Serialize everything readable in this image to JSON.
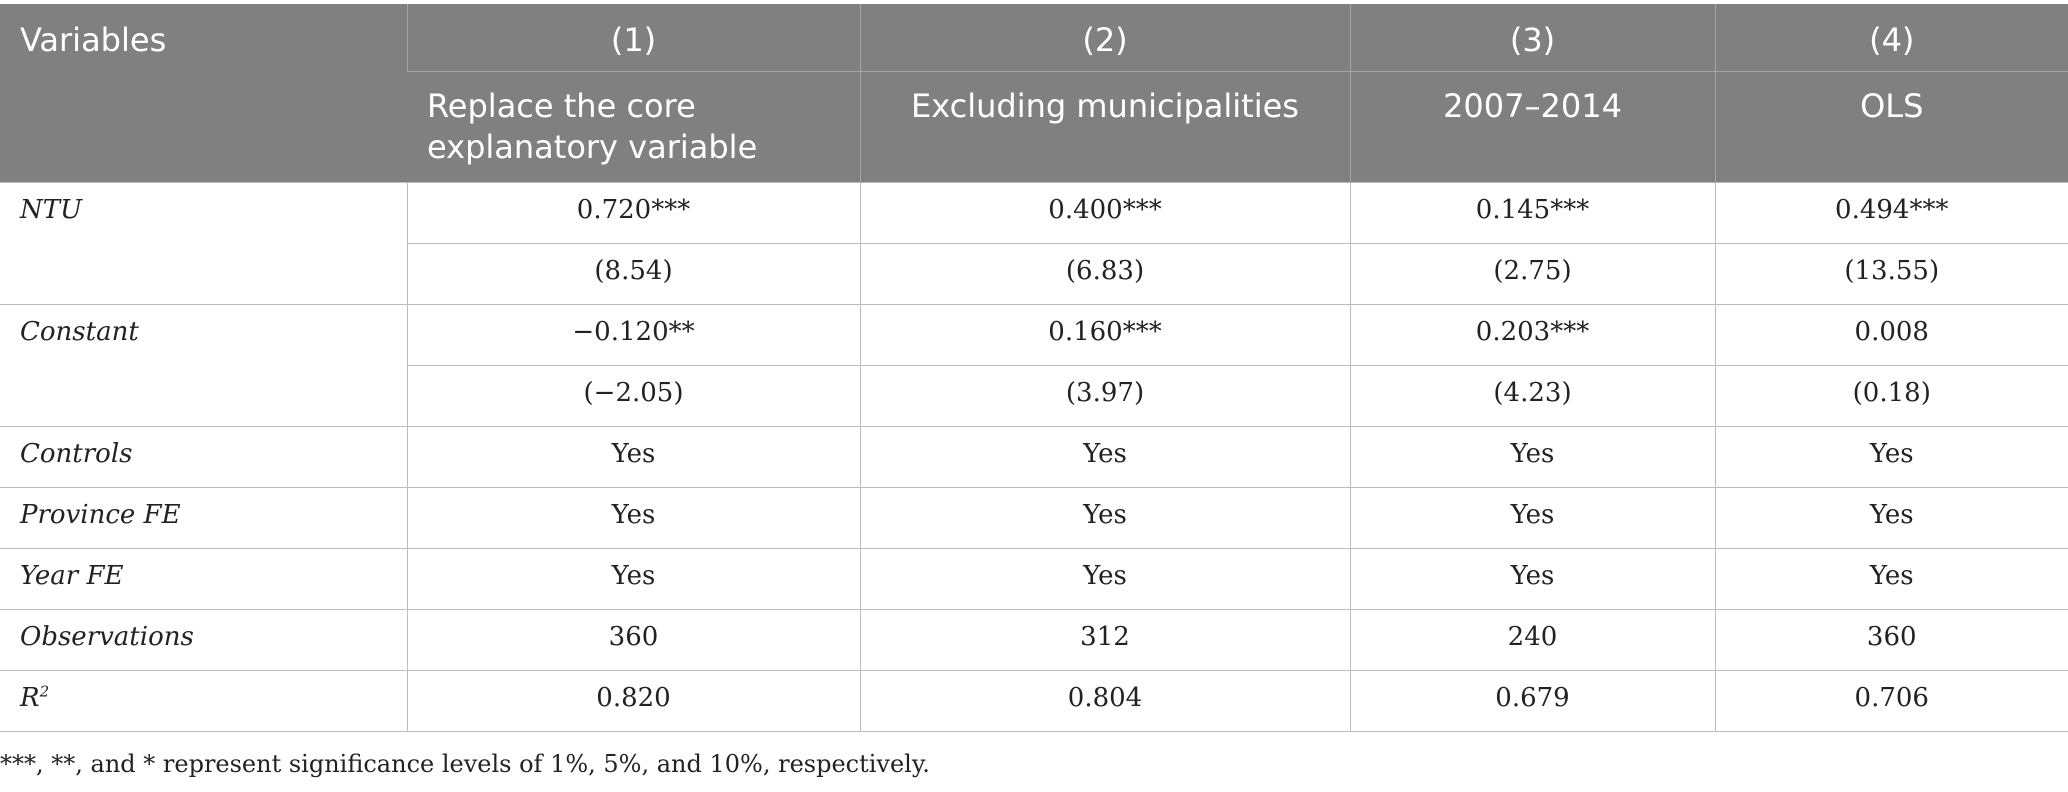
{
  "header": {
    "variables_label": "Variables",
    "columns": [
      {
        "number": "(1)",
        "title": "Replace the core explanatory variable"
      },
      {
        "number": "(2)",
        "title": "Excluding municipalities"
      },
      {
        "number": "(3)",
        "title": "2007–2014"
      },
      {
        "number": "(4)",
        "title": "OLS"
      }
    ]
  },
  "rows": {
    "ntu": {
      "label": "NTU",
      "coef": [
        "0.720***",
        "0.400***",
        "0.145***",
        "0.494***"
      ],
      "t": [
        "(8.54)",
        "(6.83)",
        "(2.75)",
        "(13.55)"
      ]
    },
    "constant": {
      "label": "Constant",
      "coef": [
        "−0.120**",
        "0.160***",
        "0.203***",
        "0.008"
      ],
      "t": [
        "(−2.05)",
        "(3.97)",
        "(4.23)",
        "(0.18)"
      ]
    },
    "controls": {
      "label": "Controls",
      "values": [
        "Yes",
        "Yes",
        "Yes",
        "Yes"
      ]
    },
    "province_fe": {
      "label": "Province FE",
      "values": [
        "Yes",
        "Yes",
        "Yes",
        "Yes"
      ]
    },
    "year_fe": {
      "label": "Year FE",
      "values": [
        "Yes",
        "Yes",
        "Yes",
        "Yes"
      ]
    },
    "observations": {
      "label": "Observations",
      "values": [
        "360",
        "312",
        "240",
        "360"
      ]
    },
    "r2": {
      "label": "R",
      "label_sup": "2",
      "values": [
        "0.820",
        "0.804",
        "0.679",
        "0.706"
      ]
    }
  },
  "footnote": "***, **, and * represent significance levels of 1%, 5%, and 10%, respectively."
}
